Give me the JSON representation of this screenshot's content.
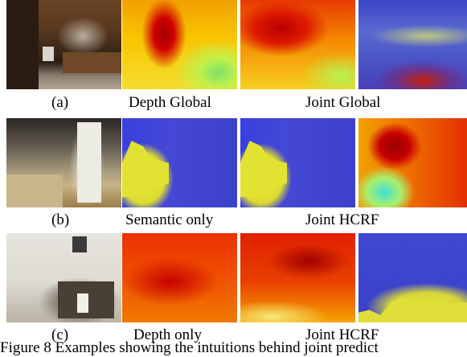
{
  "rows": [
    {
      "label": "(a)",
      "captions": [
        "Depth Global",
        "Joint Global"
      ]
    },
    {
      "label": "(b)",
      "captions": [
        "Semantic only",
        "Joint HCRF"
      ]
    },
    {
      "label": "(c)",
      "captions": [
        "Depth only",
        "Joint HCRF"
      ]
    }
  ],
  "figure_caption": "Figure 8 Examples showing the intuitions behind joint predict",
  "colors": {
    "deep_red": "#a00000",
    "yellow": "#f5de30",
    "blue": "#3a40c6",
    "background": "#ffffff"
  }
}
